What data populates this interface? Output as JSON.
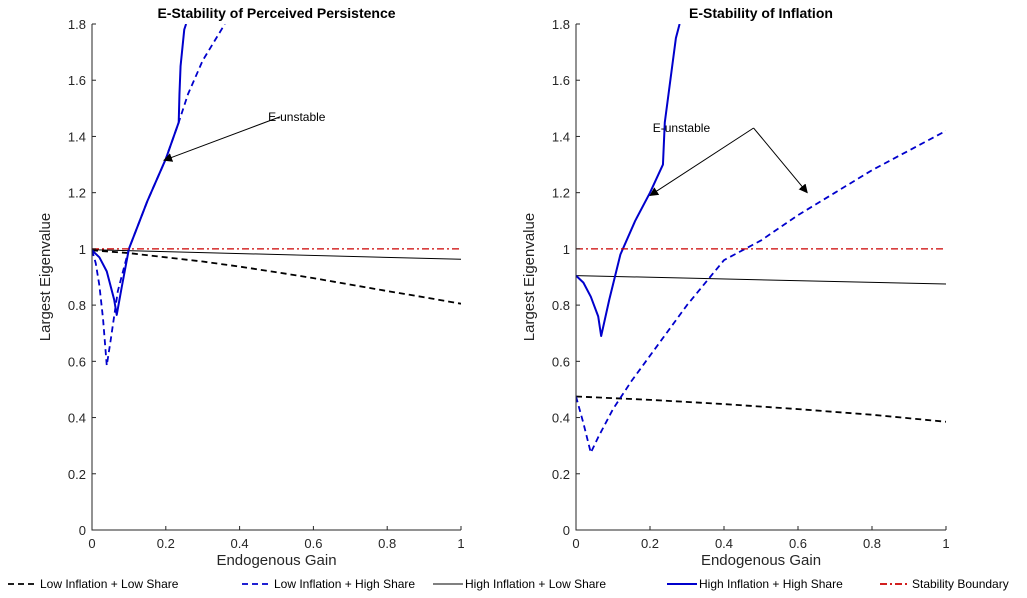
{
  "chart_data": [
    {
      "type": "line",
      "title": "E-Stability of Perceived Persistence",
      "xlabel": "Endogenous Gain",
      "ylabel": "Largest Eigenvalue",
      "xlim": [
        0,
        1
      ],
      "ylim": [
        0,
        1.8
      ],
      "xticks": [
        "0",
        "0.2",
        "0.4",
        "0.6",
        "0.8",
        "1"
      ],
      "yticks": [
        "0",
        "0.2",
        "0.4",
        "0.6",
        "0.8",
        "1",
        "1.2",
        "1.4",
        "1.6",
        "1.8"
      ],
      "grid": false,
      "series": [
        {
          "name": "Low Inflation + Low Share",
          "color": "#000000",
          "style": "dashed",
          "width": 1.8,
          "x": [
            0,
            0.1,
            0.2,
            0.3,
            0.4,
            0.5,
            0.6,
            0.7,
            0.8,
            0.9,
            1.0
          ],
          "y": [
            0.995,
            0.985,
            0.97,
            0.955,
            0.937,
            0.917,
            0.896,
            0.873,
            0.85,
            0.828,
            0.805
          ]
        },
        {
          "name": "Low Inflation + High Share",
          "color": "#0000cc",
          "style": "dashed",
          "width": 1.8,
          "x": [
            0,
            0.01,
            0.02,
            0.03,
            0.04,
            0.05,
            0.07,
            0.1,
            0.15,
            0.2,
            0.235,
            0.26,
            0.3,
            0.36
          ],
          "y": [
            0.995,
            0.95,
            0.87,
            0.75,
            0.585,
            0.67,
            0.85,
            1.0,
            1.17,
            1.32,
            1.45,
            1.55,
            1.67,
            1.8
          ]
        },
        {
          "name": "High Inflation + Low Share",
          "color": "#000000",
          "style": "solid",
          "width": 1,
          "x": [
            0,
            1
          ],
          "y": [
            0.997,
            0.963
          ]
        },
        {
          "name": "High Inflation + High Share",
          "color": "#0000cc",
          "style": "solid",
          "width": 2,
          "x": [
            0,
            0.02,
            0.04,
            0.06,
            0.067,
            0.08,
            0.1,
            0.15,
            0.2,
            0.235,
            0.237,
            0.24,
            0.25,
            0.255
          ],
          "y": [
            0.995,
            0.97,
            0.92,
            0.82,
            0.765,
            0.86,
            1.0,
            1.17,
            1.32,
            1.45,
            1.55,
            1.65,
            1.78,
            1.8
          ]
        },
        {
          "name": "Stability Boundary",
          "color": "#cc0000",
          "style": "dashdot",
          "width": 1.2,
          "x": [
            0,
            1
          ],
          "y": [
            1,
            1
          ]
        }
      ],
      "annotations": [
        {
          "text": "E-unstable",
          "x": 0.555,
          "y": 1.47,
          "arrows": [
            {
              "from": [
                0.51,
                1.47
              ],
              "to": [
                0.195,
                1.315
              ]
            }
          ]
        }
      ]
    },
    {
      "type": "line",
      "title": "E-Stability of Inflation",
      "xlabel": "Endogenous Gain",
      "ylabel": "Largest Eigenvalue",
      "xlim": [
        0,
        1
      ],
      "ylim": [
        0,
        1.8
      ],
      "xticks": [
        "0",
        "0.2",
        "0.4",
        "0.6",
        "0.8",
        "1"
      ],
      "yticks": [
        "0",
        "0.2",
        "0.4",
        "0.6",
        "0.8",
        "1",
        "1.2",
        "1.4",
        "1.6",
        "1.8"
      ],
      "grid": false,
      "series": [
        {
          "name": "Low Inflation + Low Share",
          "color": "#000000",
          "style": "dashed",
          "width": 1.8,
          "x": [
            0,
            0.2,
            0.4,
            0.6,
            0.8,
            1.0
          ],
          "y": [
            0.475,
            0.463,
            0.448,
            0.43,
            0.41,
            0.385
          ]
        },
        {
          "name": "Low Inflation + High Share",
          "color": "#0000cc",
          "style": "dashed",
          "width": 1.8,
          "x": [
            0,
            0.02,
            0.04,
            0.06,
            0.1,
            0.15,
            0.2,
            0.3,
            0.4,
            0.5,
            0.6,
            0.7,
            0.8,
            0.9,
            1.0
          ],
          "y": [
            0.475,
            0.38,
            0.275,
            0.33,
            0.43,
            0.53,
            0.62,
            0.8,
            0.96,
            1.03,
            1.12,
            1.2,
            1.28,
            1.35,
            1.42
          ]
        },
        {
          "name": "High Inflation + Low Share",
          "color": "#000000",
          "style": "solid",
          "width": 1,
          "x": [
            0,
            1
          ],
          "y": [
            0.905,
            0.875
          ]
        },
        {
          "name": "High Inflation + High Share",
          "color": "#0000cc",
          "style": "solid",
          "width": 2,
          "x": [
            0,
            0.02,
            0.04,
            0.06,
            0.068,
            0.09,
            0.12,
            0.16,
            0.2,
            0.235,
            0.24,
            0.25,
            0.26,
            0.27,
            0.28
          ],
          "y": [
            0.905,
            0.88,
            0.83,
            0.76,
            0.69,
            0.82,
            0.98,
            1.1,
            1.2,
            1.3,
            1.45,
            1.55,
            1.65,
            1.75,
            1.8
          ]
        },
        {
          "name": "Stability Boundary",
          "color": "#cc0000",
          "style": "dashdot",
          "width": 1.2,
          "x": [
            0,
            1
          ],
          "y": [
            1,
            1
          ]
        }
      ],
      "annotations": [
        {
          "text": "E-unstable",
          "x": 0.285,
          "y": 1.43,
          "arrows": [
            {
              "from": [
                0.48,
                1.43
              ],
              "to": [
                0.2,
                1.19
              ]
            },
            {
              "from": [
                0.48,
                1.43
              ],
              "to": [
                0.625,
                1.2
              ]
            }
          ]
        }
      ]
    }
  ],
  "legend": {
    "placement": "bottom",
    "items": [
      {
        "label": "Low Inflation + Low Share",
        "color": "#000000",
        "style": "dashed"
      },
      {
        "label": "Low Inflation + High Share",
        "color": "#0000cc",
        "style": "dashed"
      },
      {
        "label": "High Inflation + Low Share",
        "color": "#000000",
        "style": "solid"
      },
      {
        "label": "High Inflation + High Share",
        "color": "#0000cc",
        "style": "solid"
      },
      {
        "label": "Stability Boundary",
        "color": "#cc0000",
        "style": "dashdot"
      }
    ]
  }
}
